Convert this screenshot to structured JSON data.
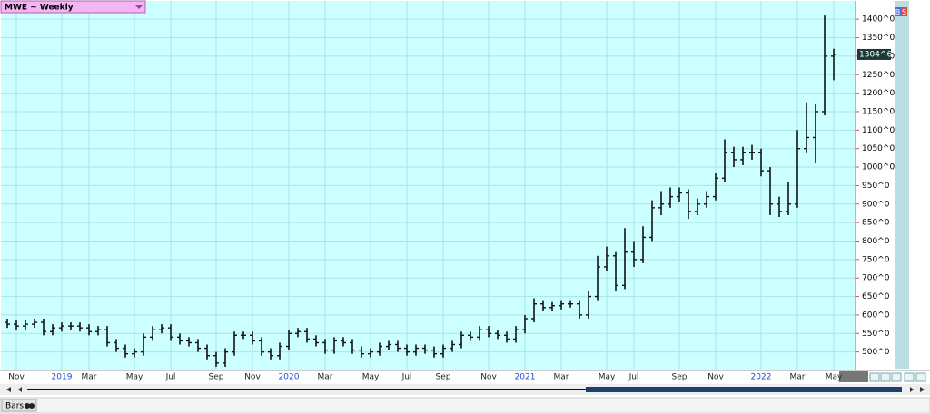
{
  "chart_data": {
    "type": "ohlc",
    "title": "MWE ~ Weekly",
    "color": "#111111",
    "grid": true,
    "categories": [
      null,
      "Nov",
      null,
      null,
      null,
      null,
      "2019",
      null,
      null,
      "Mar",
      null,
      null,
      null,
      null,
      "May",
      null,
      null,
      null,
      "Jul",
      null,
      null,
      null,
      null,
      "Sep",
      null,
      null,
      null,
      "Nov",
      null,
      null,
      null,
      "2020",
      null,
      null,
      null,
      "Mar",
      null,
      null,
      null,
      null,
      "May",
      null,
      null,
      null,
      "Jul",
      null,
      null,
      null,
      "Sep",
      null,
      null,
      null,
      null,
      "Nov",
      null,
      null,
      null,
      "2021",
      null,
      null,
      null,
      "Mar",
      null,
      null,
      null,
      null,
      "May",
      null,
      null,
      "Jul",
      null,
      null,
      null,
      null,
      "Sep",
      null,
      null,
      null,
      "Nov",
      null,
      null,
      null,
      null,
      "2022",
      null,
      null,
      null,
      "Mar",
      null,
      null,
      null,
      "May"
    ],
    "open": [
      580,
      575,
      570,
      575,
      580,
      555,
      565,
      570,
      570,
      565,
      555,
      560,
      525,
      510,
      495,
      500,
      540,
      560,
      565,
      540,
      530,
      525,
      510,
      490,
      470,
      500,
      545,
      545,
      530,
      500,
      490,
      515,
      550,
      555,
      535,
      525,
      505,
      530,
      525,
      505,
      495,
      500,
      515,
      520,
      510,
      500,
      510,
      505,
      495,
      510,
      520,
      545,
      540,
      560,
      550,
      545,
      535,
      560,
      590,
      630,
      620,
      625,
      630,
      630,
      600,
      650,
      730,
      760,
      680,
      770,
      750,
      810,
      890,
      900,
      920,
      930,
      880,
      900,
      920,
      970,
      1040,
      1020,
      1040,
      1040,
      990,
      900,
      880,
      900,
      1050,
      1080,
      1150,
      1300
    ],
    "high": [
      590,
      585,
      585,
      590,
      590,
      575,
      580,
      580,
      580,
      575,
      570,
      570,
      535,
      520,
      510,
      550,
      570,
      575,
      575,
      550,
      540,
      535,
      520,
      500,
      510,
      555,
      555,
      555,
      540,
      510,
      525,
      560,
      565,
      565,
      545,
      535,
      540,
      540,
      535,
      515,
      510,
      525,
      530,
      530,
      520,
      520,
      520,
      515,
      520,
      530,
      555,
      555,
      570,
      570,
      560,
      555,
      570,
      600,
      645,
      640,
      635,
      640,
      640,
      640,
      665,
      760,
      785,
      770,
      835,
      800,
      840,
      910,
      935,
      945,
      945,
      940,
      915,
      935,
      985,
      1075,
      1055,
      1055,
      1060,
      1050,
      1000,
      920,
      960,
      1100,
      1175,
      1170,
      1410,
      1320
    ],
    "low": [
      565,
      560,
      560,
      565,
      545,
      545,
      555,
      560,
      555,
      545,
      545,
      515,
      500,
      485,
      485,
      490,
      530,
      550,
      530,
      520,
      515,
      500,
      480,
      460,
      460,
      490,
      535,
      520,
      490,
      480,
      480,
      505,
      540,
      525,
      515,
      495,
      495,
      515,
      495,
      485,
      485,
      490,
      505,
      500,
      490,
      490,
      495,
      485,
      485,
      500,
      510,
      530,
      530,
      540,
      535,
      525,
      525,
      550,
      580,
      610,
      610,
      615,
      620,
      590,
      590,
      640,
      720,
      665,
      670,
      730,
      740,
      800,
      870,
      890,
      905,
      860,
      870,
      890,
      910,
      960,
      1000,
      1005,
      1020,
      975,
      870,
      865,
      870,
      890,
      1040,
      1010,
      1140,
      1235
    ],
    "close": [
      575,
      570,
      575,
      580,
      555,
      565,
      570,
      570,
      565,
      555,
      560,
      525,
      510,
      495,
      500,
      540,
      560,
      565,
      540,
      530,
      525,
      510,
      490,
      470,
      500,
      545,
      545,
      530,
      500,
      490,
      515,
      550,
      555,
      535,
      525,
      505,
      530,
      525,
      505,
      495,
      500,
      515,
      520,
      510,
      500,
      510,
      505,
      495,
      510,
      520,
      545,
      540,
      560,
      550,
      545,
      535,
      560,
      590,
      630,
      620,
      625,
      630,
      630,
      600,
      650,
      730,
      760,
      680,
      770,
      750,
      810,
      890,
      900,
      920,
      930,
      880,
      900,
      920,
      970,
      1040,
      1020,
      1040,
      1040,
      990,
      900,
      880,
      900,
      1050,
      1080,
      1150,
      1300,
      1304.75
    ],
    "ylim": [
      450,
      1452
    ],
    "yticks": [
      {
        "value": 500,
        "label": "500^0"
      },
      {
        "value": 550,
        "label": "550^0"
      },
      {
        "value": 600,
        "label": "600^0"
      },
      {
        "value": 650,
        "label": "650^0"
      },
      {
        "value": 700,
        "label": "700^0"
      },
      {
        "value": 750,
        "label": "750^0"
      },
      {
        "value": 800,
        "label": "800^0"
      },
      {
        "value": 850,
        "label": "850^0"
      },
      {
        "value": 900,
        "label": "900^0"
      },
      {
        "value": 950,
        "label": "950^0"
      },
      {
        "value": 1000,
        "label": "1000^0"
      },
      {
        "value": 1050,
        "label": "1050^0"
      },
      {
        "value": 1100,
        "label": "1100^0"
      },
      {
        "value": 1150,
        "label": "1150^0"
      },
      {
        "value": 1200,
        "label": "1200^0"
      },
      {
        "value": 1250,
        "label": "1250^0"
      },
      {
        "value": 1300,
        "label": "1300^0"
      },
      {
        "value": 1350,
        "label": "1350^0"
      },
      {
        "value": 1400,
        "label": "1400^0"
      }
    ],
    "last_price_label": "1304^6"
  },
  "ui": {
    "buy": "B",
    "sell": "S",
    "tab": "Bars"
  }
}
